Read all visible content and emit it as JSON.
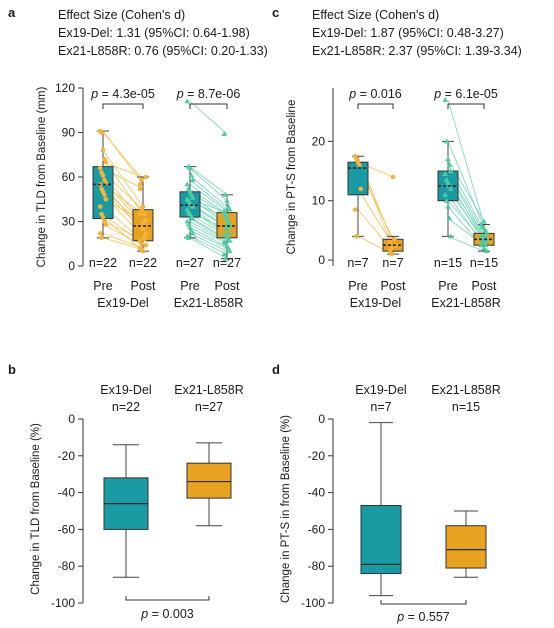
{
  "colors": {
    "ex19": "#1a9ba3",
    "ex21": "#e8a221",
    "ex19_point": "#f3b33b",
    "ex19_line": "#f5bf55",
    "ex21_point": "#4fcca5",
    "ex21_line": "#74d6b6",
    "median": "#2b2b2b"
  },
  "chart_data": [
    {
      "panel": "a",
      "type": "box-paired",
      "effect_title": "Effect Size (Cohen's d)",
      "effect_lines": [
        "Ex19-Del: 1.31 (95%CI: 0.64-1.98)",
        "Ex21-L858R: 0.76 (95%CI: 0.20-1.33)"
      ],
      "ylabel": "Change in TLD from Baseline (mm)",
      "ylim": [
        0,
        120
      ],
      "yticks": [
        0,
        30,
        60,
        90,
        120
      ],
      "groups": [
        {
          "name": "Ex19-Del",
          "pvalue_label": "p",
          "pvalue": " = 4.3e-05",
          "n_pre": "n=22",
          "n_post": "n=22",
          "pre": {
            "min": 19,
            "q1": 32,
            "median": 55,
            "q3": 67,
            "max": 91
          },
          "post": {
            "min": 10,
            "q1": 17,
            "median": 27,
            "q3": 38,
            "max": 60
          },
          "pairs": [
            [
              91,
              55
            ],
            [
              90,
              58
            ],
            [
              78,
              40
            ],
            [
              72,
              35
            ],
            [
              70,
              60
            ],
            [
              66,
              52
            ],
            [
              63,
              38
            ],
            [
              61,
              30
            ],
            [
              58,
              28
            ],
            [
              56,
              22
            ],
            [
              55,
              35
            ],
            [
              52,
              27
            ],
            [
              50,
              25
            ],
            [
              48,
              20
            ],
            [
              45,
              31
            ],
            [
              40,
              17
            ],
            [
              35,
              15
            ],
            [
              33,
              10
            ],
            [
              30,
              18
            ],
            [
              28,
              14
            ],
            [
              22,
              12
            ],
            [
              19,
              11
            ]
          ]
        },
        {
          "name": "Ex21-L858R",
          "pvalue_label": "p",
          "pvalue": " = 8.7e-06",
          "n_pre": "n=27",
          "n_post": "n=27",
          "pre": {
            "min": 19,
            "q1": 33,
            "median": 41,
            "q3": 50,
            "max": 67
          },
          "post": {
            "min": 5,
            "q1": 19,
            "median": 27,
            "q3": 36,
            "max": 48
          },
          "pairs": [
            [
              111,
              89
            ],
            [
              67,
              48
            ],
            [
              66,
              44
            ],
            [
              61,
              40
            ],
            [
              58,
              38
            ],
            [
              55,
              37
            ],
            [
              52,
              35
            ],
            [
              50,
              34
            ],
            [
              48,
              30
            ],
            [
              46,
              28
            ],
            [
              45,
              36
            ],
            [
              44,
              32
            ],
            [
              42,
              27
            ],
            [
              41,
              26
            ],
            [
              40,
              22
            ],
            [
              38,
              21
            ],
            [
              36,
              25
            ],
            [
              35,
              20
            ],
            [
              33,
              18
            ],
            [
              32,
              17
            ],
            [
              30,
              16
            ],
            [
              28,
              15
            ],
            [
              26,
              13
            ],
            [
              24,
              12
            ],
            [
              22,
              10
            ],
            [
              20,
              8
            ],
            [
              19,
              5
            ]
          ]
        }
      ],
      "cat_pre": "Pre",
      "cat_post": "Post"
    },
    {
      "panel": "c",
      "type": "box-paired",
      "effect_title": "Effect Size (Cohen's d)",
      "effect_lines": [
        "Ex19-Del: 1.87 (95%CI: 0.48-3.27)",
        "Ex21-L858R: 2.37 (95%CI: 1.39-3.34)"
      ],
      "ylabel": "Change in PT-S from Baseline",
      "ylim": [
        -1,
        29
      ],
      "yticks": [
        0,
        10,
        20
      ],
      "groups": [
        {
          "name": "Ex19-Del",
          "pvalue_label": "p",
          "pvalue": " = 0.016",
          "n_pre": "n=7",
          "n_post": "n=7",
          "pre": {
            "min": 4,
            "q1": 11,
            "median": 15.5,
            "q3": 16.5,
            "max": 17.5
          },
          "post": {
            "min": 1,
            "q1": 1.5,
            "median": 2.5,
            "q3": 3.5,
            "max": 4
          },
          "pairs": [
            [
              17.5,
              3
            ],
            [
              17,
              2
            ],
            [
              16.5,
              14
            ],
            [
              16,
              3.5
            ],
            [
              12,
              2.5
            ],
            [
              8.5,
              1.5
            ],
            [
              4,
              1
            ]
          ]
        },
        {
          "name": "Ex21-L858R",
          "pvalue_label": "p",
          "pvalue": " = 6.1e-05",
          "n_pre": "n=15",
          "n_post": "n=15",
          "pre": {
            "min": 4,
            "q1": 10,
            "median": 12.5,
            "q3": 15,
            "max": 20
          },
          "post": {
            "min": 1.5,
            "q1": 2.5,
            "median": 3.5,
            "q3": 4.5,
            "max": 6
          },
          "pairs": [
            [
              27,
              6
            ],
            [
              20,
              5.5
            ],
            [
              17,
              6.5
            ],
            [
              16,
              5
            ],
            [
              15,
              4.5
            ],
            [
              14.5,
              4
            ],
            [
              13.5,
              3.5
            ],
            [
              13,
              4
            ],
            [
              12.5,
              3
            ],
            [
              12,
              3.5
            ],
            [
              11,
              2.5
            ],
            [
              10,
              3
            ],
            [
              9,
              2
            ],
            [
              7,
              2.5
            ],
            [
              4,
              1.5
            ]
          ]
        }
      ],
      "cat_pre": "Pre",
      "cat_post": "Post"
    },
    {
      "panel": "b",
      "type": "box",
      "ylabel": "Change in TLD from Baseline (%)",
      "ylim": [
        -100,
        0
      ],
      "yticks": [
        0,
        -20,
        -40,
        -60,
        -80,
        -100
      ],
      "boxes": [
        {
          "name": "Ex19-Del",
          "n": "n=22",
          "min": -86,
          "q1": -60,
          "median": -46,
          "q3": -32,
          "max": -14
        },
        {
          "name": "Ex21-L858R",
          "n": "n=27",
          "min": -58,
          "q1": -43,
          "median": -34,
          "q3": -24,
          "max": -13
        }
      ],
      "pvalue_label": "p",
      "pvalue": " = 0.003"
    },
    {
      "panel": "d",
      "type": "box",
      "ylabel": "Change in PT-S in from Baseline (%)",
      "ylim": [
        -100,
        0
      ],
      "yticks": [
        0,
        -20,
        -40,
        -60,
        -80,
        -100
      ],
      "boxes": [
        {
          "name": "Ex19-Del",
          "n": "n=7",
          "min": -96,
          "q1": -84,
          "median": -79,
          "q3": -47,
          "max": -2
        },
        {
          "name": "Ex21-L858R",
          "n": "n=15",
          "min": -86,
          "q1": -81,
          "median": -71,
          "q3": -58,
          "max": -50
        }
      ],
      "pvalue_label": "p",
      "pvalue": " = 0.557"
    }
  ]
}
